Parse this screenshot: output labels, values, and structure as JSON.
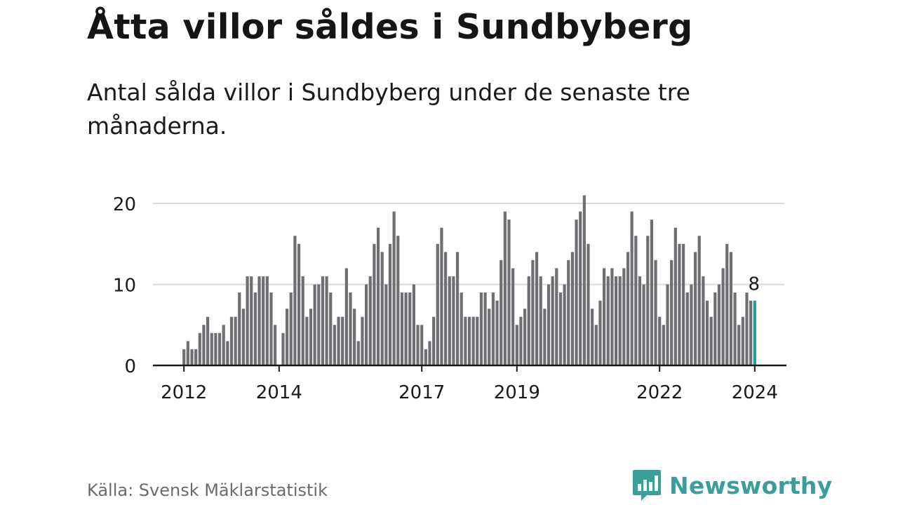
{
  "header": {
    "title": "Åtta villor såldes i Sundbyberg",
    "subtitle": "Antal sålda villor i Sundbyberg under de senaste tre månaderna."
  },
  "footer": {
    "source": "Källa: Svensk Mäklarstatistik",
    "brand": "Newsworthy"
  },
  "colors": {
    "bar": "#6f6e73",
    "highlight": "#1aa19d",
    "grid": "#d9d9d9",
    "axis": "#1a1a1a",
    "brand": "#3a9e9b"
  },
  "chart_data": {
    "type": "bar",
    "title": "Åtta villor såldes i Sundbyberg",
    "xlabel": "",
    "ylabel": "",
    "start": "2012-01",
    "ylim": [
      0,
      21
    ],
    "yticks": [
      0,
      10,
      20
    ],
    "x_ticks": [
      {
        "label": "2012",
        "index": 0
      },
      {
        "label": "2014",
        "index": 24
      },
      {
        "label": "2017",
        "index": 60
      },
      {
        "label": "2019",
        "index": 84
      },
      {
        "label": "2022",
        "index": 120
      },
      {
        "label": "2024",
        "index": 144
      }
    ],
    "values": [
      2,
      3,
      2,
      2,
      4,
      5,
      6,
      4,
      4,
      4,
      5,
      3,
      6,
      6,
      9,
      7,
      11,
      11,
      9,
      11,
      11,
      11,
      9,
      5,
      0,
      4,
      7,
      9,
      16,
      15,
      11,
      6,
      7,
      10,
      10,
      11,
      11,
      9,
      5,
      6,
      6,
      12,
      9,
      7,
      3,
      6,
      10,
      11,
      15,
      17,
      14,
      10,
      15,
      19,
      16,
      9,
      9,
      9,
      10,
      5,
      5,
      2,
      3,
      6,
      15,
      17,
      14,
      11,
      11,
      14,
      9,
      6,
      6,
      6,
      6,
      9,
      9,
      7,
      9,
      8,
      13,
      19,
      18,
      12,
      5,
      6,
      7,
      11,
      13,
      14,
      11,
      7,
      10,
      11,
      12,
      9,
      10,
      13,
      14,
      18,
      19,
      21,
      15,
      7,
      5,
      8,
      12,
      11,
      12,
      11,
      11,
      12,
      14,
      19,
      16,
      11,
      10,
      16,
      18,
      13,
      6,
      5,
      10,
      13,
      17,
      15,
      15,
      9,
      10,
      14,
      16,
      11,
      8,
      6,
      9,
      10,
      12,
      15,
      14,
      9,
      5,
      6,
      9,
      8,
      8
    ],
    "highlight_index": 144,
    "data_labels": [
      {
        "index": 144,
        "text": "8"
      }
    ]
  }
}
